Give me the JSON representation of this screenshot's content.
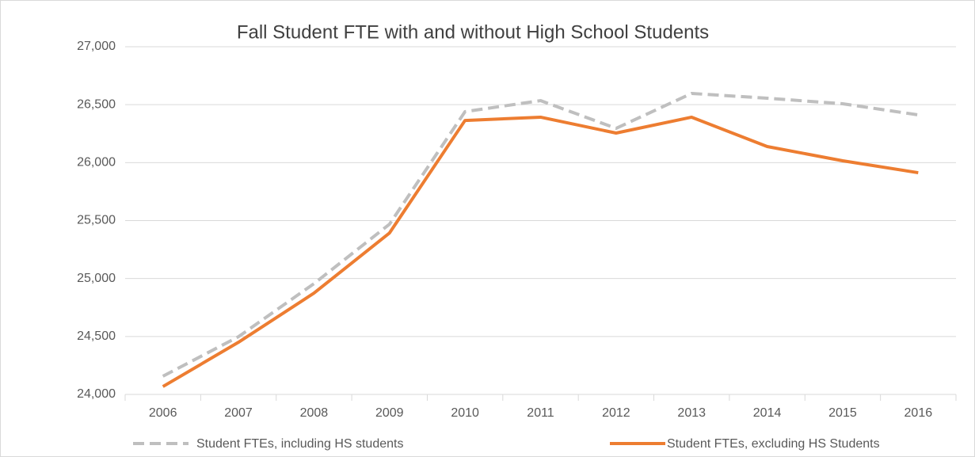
{
  "chart_data": {
    "type": "line",
    "title": "Fall Student FTE with and without High School Students",
    "categories": [
      "2006",
      "2007",
      "2008",
      "2009",
      "2010",
      "2011",
      "2012",
      "2013",
      "2014",
      "2015",
      "2016"
    ],
    "series": [
      {
        "name": "Student FTEs, including HS students",
        "color": "#bfbfbf",
        "dashed": true,
        "values": [
          24157,
          24498,
          24956,
          25469,
          26440,
          26535,
          26296,
          26597,
          26556,
          26508,
          26412
        ]
      },
      {
        "name": "Student FTEs, excluding HS Students",
        "color": "#ed7d31",
        "dashed": false,
        "values": [
          24068,
          24450,
          24874,
          25393,
          26364,
          26392,
          26255,
          26392,
          26139,
          26016,
          25913
        ]
      }
    ],
    "ylim": [
      24000,
      27000
    ],
    "yticks": [
      {
        "value": 24000,
        "label": "24,000"
      },
      {
        "value": 24500,
        "label": "24,500"
      },
      {
        "value": 25000,
        "label": "25,000"
      },
      {
        "value": 25500,
        "label": "25,500"
      },
      {
        "value": 26000,
        "label": "26,000"
      },
      {
        "value": 26500,
        "label": "26,500"
      },
      {
        "value": 27000,
        "label": "27,000"
      }
    ],
    "grid": true,
    "legend": "bottom"
  }
}
